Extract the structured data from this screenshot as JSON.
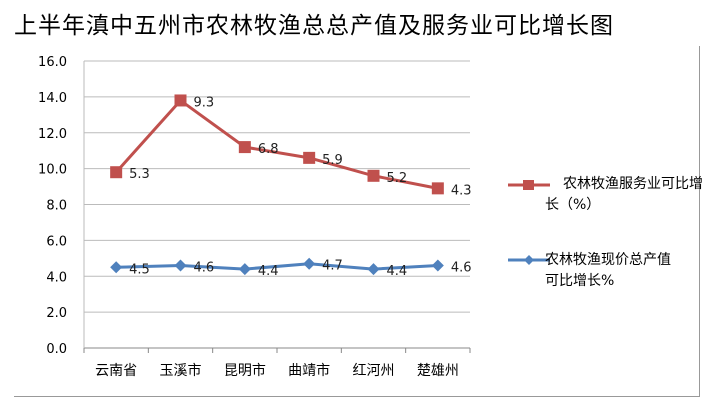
{
  "title": "上半年滇中五州市农林牧渔总总产值及服务业可比增长图",
  "chart_data": {
    "type": "line",
    "title": "上半年滇中五州市农林牧渔总总产值及服务业可比增长图",
    "categories": [
      "云南省",
      "玉溪市",
      "昆明市",
      "曲靖市",
      "红河州",
      "楚雄州"
    ],
    "ylim": [
      0,
      16
    ],
    "yticks": [
      "0.0",
      "2.0",
      "4.0",
      "6.0",
      "8.0",
      "10.0",
      "12.0",
      "14.0",
      "16.0"
    ],
    "grid": true,
    "legend_position": "right",
    "series": [
      {
        "name": "农林牧渔服务业可比增长（%）",
        "color": "#c0504d",
        "marker": "square",
        "values": [
          9.8,
          13.8,
          11.2,
          10.6,
          9.6,
          8.9
        ],
        "data_labels": [
          "5.3",
          "9.3",
          "6.8",
          "5.9",
          "5.2",
          "4.3"
        ]
      },
      {
        "name": "农林牧渔现价总产值可比增长%",
        "color": "#4f81bd",
        "marker": "diamond",
        "values": [
          4.5,
          4.6,
          4.4,
          4.7,
          4.4,
          4.6
        ],
        "data_labels": [
          "4.5",
          "4.6",
          "4.4",
          "4.7",
          "4.4",
          "4.6"
        ]
      }
    ]
  }
}
